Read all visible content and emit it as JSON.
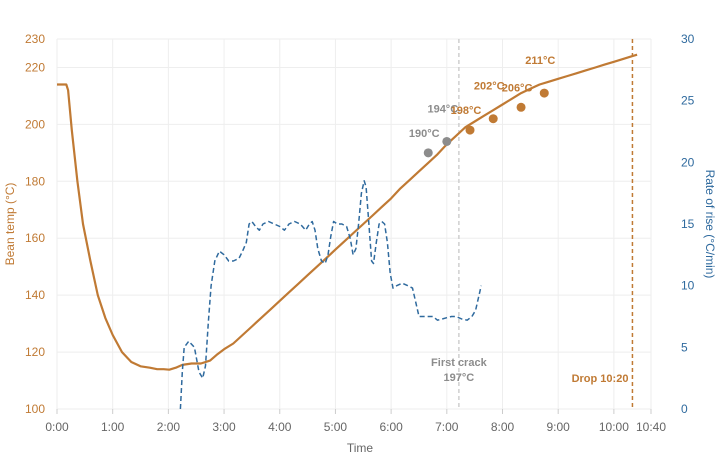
{
  "chart_data": {
    "type": "line",
    "xlabel": "Time",
    "ylabel_left": "Bean temp (°C)",
    "ylabel_right": "Rate of rise (°C/min)",
    "xlim": [
      0,
      640
    ],
    "ylim_left": [
      100,
      230
    ],
    "ylim_right": [
      0,
      30
    ],
    "grid": true,
    "x_ticks": [
      {
        "value": 0,
        "label": "0:00"
      },
      {
        "value": 60,
        "label": "1:00"
      },
      {
        "value": 120,
        "label": "2:00"
      },
      {
        "value": 180,
        "label": "3:00"
      },
      {
        "value": 240,
        "label": "4:00"
      },
      {
        "value": 300,
        "label": "5:00"
      },
      {
        "value": 360,
        "label": "6:00"
      },
      {
        "value": 420,
        "label": "7:00"
      },
      {
        "value": 480,
        "label": "8:00"
      },
      {
        "value": 540,
        "label": "9:00"
      },
      {
        "value": 600,
        "label": "10:00"
      },
      {
        "value": 640,
        "label": "10:40"
      }
    ],
    "y_ticks_left": [
      100,
      120,
      140,
      160,
      180,
      200,
      220,
      230
    ],
    "y_ticks_right": [
      0,
      5,
      10,
      15,
      20,
      25,
      30
    ],
    "colors": {
      "bean": "#c07a34",
      "ror": "#2f6a9e",
      "grid": "#eeeeee",
      "milestone_grey": "#8c8c8c",
      "first_crack_line": "#cfcfcf"
    },
    "series": [
      {
        "axis": "left",
        "style": "solid",
        "points": [
          [
            0,
            214
          ],
          [
            10,
            214
          ],
          [
            12,
            212
          ],
          [
            16,
            198
          ],
          [
            22,
            180
          ],
          [
            28,
            165
          ],
          [
            36,
            152
          ],
          [
            44,
            140
          ],
          [
            52,
            132
          ],
          [
            60,
            126
          ],
          [
            70,
            120
          ],
          [
            80,
            116.5
          ],
          [
            90,
            115
          ],
          [
            100,
            114.5
          ],
          [
            108,
            114
          ],
          [
            115,
            114
          ],
          [
            121,
            113.8
          ],
          [
            128,
            114.5
          ],
          [
            135,
            115.5
          ],
          [
            145,
            116
          ],
          [
            155,
            116
          ],
          [
            165,
            117
          ],
          [
            172,
            119
          ],
          [
            180,
            121
          ],
          [
            190,
            123
          ],
          [
            200,
            126
          ],
          [
            210,
            129
          ],
          [
            220,
            132
          ],
          [
            230,
            135
          ],
          [
            240,
            138
          ],
          [
            250,
            141
          ],
          [
            260,
            144
          ],
          [
            270,
            147
          ],
          [
            280,
            150
          ],
          [
            290,
            153
          ],
          [
            300,
            156
          ],
          [
            310,
            159
          ],
          [
            320,
            162
          ],
          [
            330,
            165
          ],
          [
            340,
            168
          ],
          [
            350,
            171
          ],
          [
            360,
            174
          ],
          [
            370,
            177.5
          ],
          [
            380,
            180.5
          ],
          [
            390,
            183.5
          ],
          [
            400,
            186.5
          ],
          [
            410,
            189.5
          ],
          [
            420,
            193
          ],
          [
            430,
            196
          ],
          [
            440,
            199
          ],
          [
            450,
            201
          ],
          [
            460,
            203
          ],
          [
            470,
            205
          ],
          [
            480,
            207
          ],
          [
            490,
            209
          ],
          [
            500,
            211
          ],
          [
            510,
            212.5
          ],
          [
            520,
            214
          ],
          [
            530,
            215
          ],
          [
            540,
            216
          ],
          [
            550,
            217
          ],
          [
            560,
            218
          ],
          [
            570,
            219
          ],
          [
            580,
            220
          ],
          [
            590,
            221
          ],
          [
            600,
            222
          ],
          [
            610,
            223
          ],
          [
            620,
            224
          ],
          [
            625,
            224.5
          ]
        ]
      },
      {
        "axis": "right",
        "style": "dashed",
        "points": [
          [
            133,
            0
          ],
          [
            135,
            3
          ],
          [
            137,
            5
          ],
          [
            142,
            5.5
          ],
          [
            148,
            5
          ],
          [
            153,
            3
          ],
          [
            157,
            2.5
          ],
          [
            160,
            3.5
          ],
          [
            163,
            7
          ],
          [
            166,
            10
          ],
          [
            170,
            12
          ],
          [
            175,
            12.8
          ],
          [
            180,
            12.5
          ],
          [
            185,
            12
          ],
          [
            190,
            12
          ],
          [
            196,
            12.2
          ],
          [
            200,
            12.8
          ],
          [
            204,
            13.5
          ],
          [
            207,
            15
          ],
          [
            210,
            15.2
          ],
          [
            214,
            14.8
          ],
          [
            218,
            14.5
          ],
          [
            222,
            15
          ],
          [
            228,
            15.2
          ],
          [
            234,
            15
          ],
          [
            240,
            14.8
          ],
          [
            245,
            14.5
          ],
          [
            250,
            15
          ],
          [
            256,
            15.2
          ],
          [
            262,
            15
          ],
          [
            268,
            14.5
          ],
          [
            272,
            15
          ],
          [
            275,
            15.2
          ],
          [
            278,
            14.5
          ],
          [
            281,
            13
          ],
          [
            285,
            12
          ],
          [
            289,
            11.8
          ],
          [
            292,
            12.5
          ],
          [
            295,
            14
          ],
          [
            298,
            15.2
          ],
          [
            302,
            15
          ],
          [
            307,
            15
          ],
          [
            312,
            14.8
          ],
          [
            316,
            13.8
          ],
          [
            319,
            12.5
          ],
          [
            322,
            13
          ],
          [
            325,
            15
          ],
          [
            328,
            17.5
          ],
          [
            331,
            18.5
          ],
          [
            333,
            18
          ],
          [
            336,
            15
          ],
          [
            339,
            12
          ],
          [
            341,
            11.8
          ],
          [
            344,
            13.5
          ],
          [
            347,
            15
          ],
          [
            350,
            15.2
          ],
          [
            353,
            15
          ],
          [
            356,
            13.5
          ],
          [
            359,
            11
          ],
          [
            362,
            9.8
          ],
          [
            366,
            10
          ],
          [
            372,
            10.2
          ],
          [
            378,
            10
          ],
          [
            383,
            9.8
          ],
          [
            387,
            8.5
          ],
          [
            390,
            7.5
          ],
          [
            395,
            7.5
          ],
          [
            400,
            7.5
          ],
          [
            405,
            7.5
          ],
          [
            410,
            7.2
          ],
          [
            415,
            7.3
          ],
          [
            420,
            7.4
          ],
          [
            425,
            7.5
          ],
          [
            430,
            7.5
          ],
          [
            436,
            7.3
          ],
          [
            442,
            7.2
          ],
          [
            447,
            7.5
          ],
          [
            451,
            8
          ],
          [
            454,
            9
          ],
          [
            457,
            10
          ]
        ]
      }
    ],
    "milestones": [
      {
        "x": 400,
        "y": 190,
        "label": "190°C",
        "color": "grey"
      },
      {
        "x": 420,
        "y": 194,
        "label": "194°C",
        "color": "grey"
      },
      {
        "x": 445,
        "y": 198,
        "label": "198°C",
        "color": "orange"
      },
      {
        "x": 470,
        "y": 202,
        "label": "202°C",
        "color": "orange"
      },
      {
        "x": 500,
        "y": 206,
        "label": "206°C",
        "color": "orange"
      },
      {
        "x": 525,
        "y": 211,
        "label": "211°C",
        "color": "orange"
      }
    ],
    "events": [
      {
        "name": "first-crack",
        "x": 433,
        "label_line1": "First crack",
        "label_line2": "197°C"
      },
      {
        "name": "drop",
        "x": 620,
        "label_line1": "Drop 10:20"
      }
    ]
  }
}
